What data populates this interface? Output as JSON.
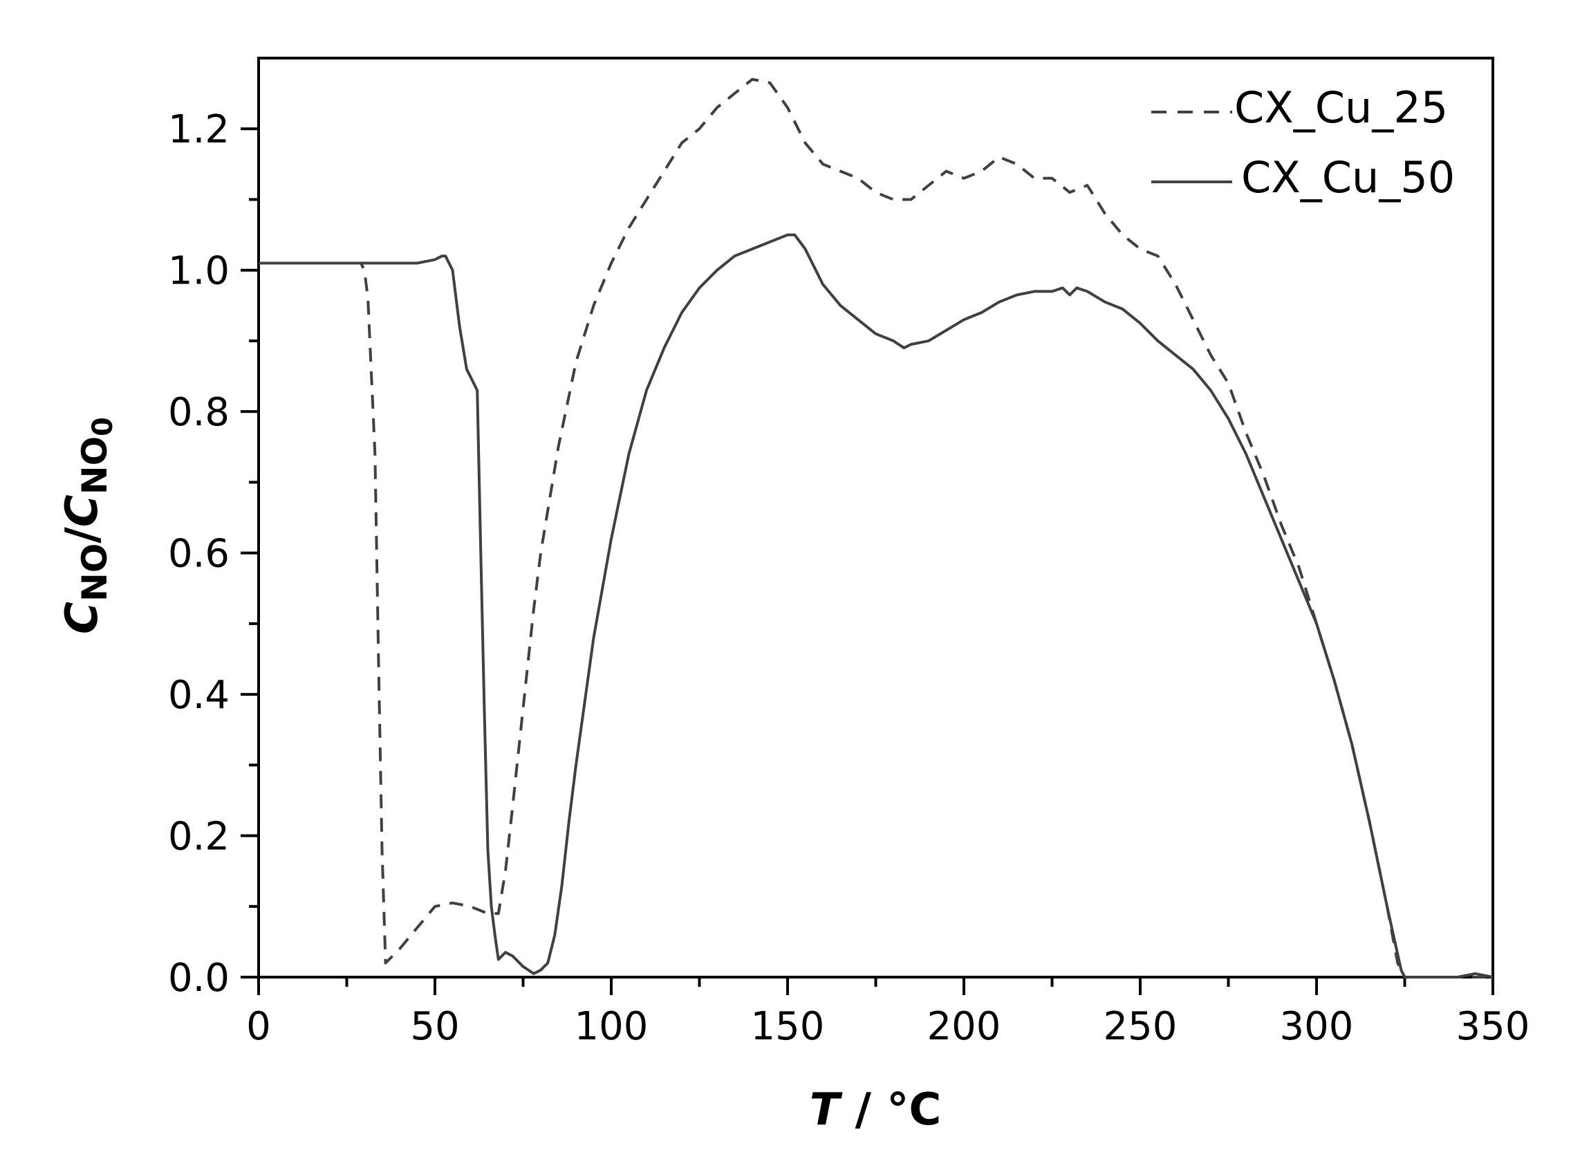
{
  "chart_data": {
    "type": "line",
    "title": "",
    "xlabel": "T / °C",
    "xlabel_parts": {
      "var": "T",
      "unit": " / °C"
    },
    "ylabel": "C_NO/C_NO0",
    "ylabel_parts": {
      "c1": "C",
      "s1": "NO",
      "slash": "/",
      "c2": "C",
      "s2": "NO",
      "s3": "0"
    },
    "xlim": [
      0,
      350
    ],
    "ylim": [
      0,
      1.3
    ],
    "xticks": [
      0,
      50,
      100,
      150,
      200,
      250,
      300,
      350
    ],
    "xtick_labels": [
      "0",
      "50",
      "100",
      "150",
      "200",
      "250",
      "300",
      "350"
    ],
    "yticks": [
      0.0,
      0.2,
      0.4,
      0.6,
      0.8,
      1.0,
      1.2
    ],
    "ytick_labels": [
      "0.0",
      "0.2",
      "0.4",
      "0.6",
      "0.8",
      "1.0",
      "1.2"
    ],
    "grid": false,
    "legend_position": "upper right",
    "series": [
      {
        "name": "CX_Cu_25",
        "style": "dashed",
        "color": "#404040",
        "x": [
          0,
          10,
          20,
          29,
          30,
          31,
          32,
          33,
          34,
          35,
          36,
          40,
          45,
          50,
          55,
          60,
          65,
          68,
          70,
          72,
          75,
          78,
          80,
          85,
          90,
          95,
          100,
          105,
          110,
          115,
          120,
          125,
          130,
          135,
          140,
          145,
          150,
          155,
          160,
          165,
          170,
          175,
          180,
          185,
          190,
          195,
          200,
          205,
          210,
          215,
          220,
          225,
          230,
          235,
          240,
          245,
          250,
          255,
          260,
          265,
          270,
          275,
          280,
          285,
          290,
          295,
          300,
          305,
          310,
          315,
          320,
          323,
          325,
          330,
          340,
          345,
          350
        ],
        "y": [
          1.01,
          1.01,
          1.01,
          1.01,
          1.0,
          0.96,
          0.85,
          0.74,
          0.45,
          0.18,
          0.02,
          0.04,
          0.07,
          0.1,
          0.105,
          0.1,
          0.09,
          0.09,
          0.15,
          0.24,
          0.38,
          0.52,
          0.6,
          0.75,
          0.87,
          0.95,
          1.01,
          1.06,
          1.1,
          1.14,
          1.18,
          1.2,
          1.23,
          1.25,
          1.27,
          1.265,
          1.23,
          1.18,
          1.15,
          1.14,
          1.13,
          1.11,
          1.1,
          1.1,
          1.12,
          1.14,
          1.13,
          1.14,
          1.16,
          1.15,
          1.13,
          1.13,
          1.11,
          1.12,
          1.08,
          1.05,
          1.03,
          1.02,
          0.98,
          0.93,
          0.88,
          0.84,
          0.77,
          0.71,
          0.64,
          0.58,
          0.5,
          0.42,
          0.33,
          0.22,
          0.1,
          0.02,
          0.0,
          0.0,
          0.0,
          0.0,
          0.0
        ]
      },
      {
        "name": "CX_Cu_50",
        "style": "solid",
        "color": "#404040",
        "x": [
          0,
          10,
          20,
          30,
          35,
          40,
          45,
          50,
          52,
          53,
          55,
          57,
          59,
          60,
          62,
          63,
          64,
          65,
          66,
          67,
          68,
          70,
          72,
          75,
          78,
          80,
          82,
          84,
          86,
          88,
          90,
          95,
          100,
          105,
          110,
          115,
          120,
          125,
          130,
          135,
          140,
          145,
          150,
          152,
          155,
          158,
          160,
          165,
          170,
          175,
          180,
          183,
          185,
          190,
          195,
          200,
          205,
          210,
          215,
          220,
          225,
          228,
          230,
          232,
          235,
          240,
          245,
          250,
          255,
          260,
          265,
          270,
          275,
          280,
          285,
          290,
          295,
          300,
          305,
          310,
          315,
          320,
          324,
          325,
          330,
          340,
          345,
          350
        ],
        "y": [
          1.01,
          1.01,
          1.01,
          1.01,
          1.01,
          1.01,
          1.01,
          1.015,
          1.02,
          1.02,
          1.0,
          0.92,
          0.86,
          0.85,
          0.83,
          0.6,
          0.38,
          0.18,
          0.1,
          0.06,
          0.025,
          0.035,
          0.03,
          0.015,
          0.005,
          0.01,
          0.02,
          0.06,
          0.13,
          0.22,
          0.3,
          0.48,
          0.62,
          0.74,
          0.83,
          0.89,
          0.94,
          0.975,
          1.0,
          1.02,
          1.03,
          1.04,
          1.05,
          1.05,
          1.03,
          1.0,
          0.98,
          0.95,
          0.93,
          0.91,
          0.9,
          0.89,
          0.895,
          0.9,
          0.915,
          0.93,
          0.94,
          0.955,
          0.965,
          0.97,
          0.97,
          0.975,
          0.965,
          0.975,
          0.97,
          0.955,
          0.945,
          0.925,
          0.9,
          0.88,
          0.86,
          0.83,
          0.79,
          0.74,
          0.68,
          0.62,
          0.56,
          0.5,
          0.42,
          0.33,
          0.22,
          0.1,
          0.01,
          0.0,
          0.0,
          0.0,
          0.005,
          0.0
        ]
      }
    ]
  },
  "legend": {
    "items": [
      {
        "label": "CX_Cu_25",
        "style": "dashed"
      },
      {
        "label": "CX_Cu_50",
        "style": "solid"
      }
    ]
  },
  "colors": {
    "axis": "#000000",
    "line": "#404040",
    "background": "#ffffff"
  }
}
